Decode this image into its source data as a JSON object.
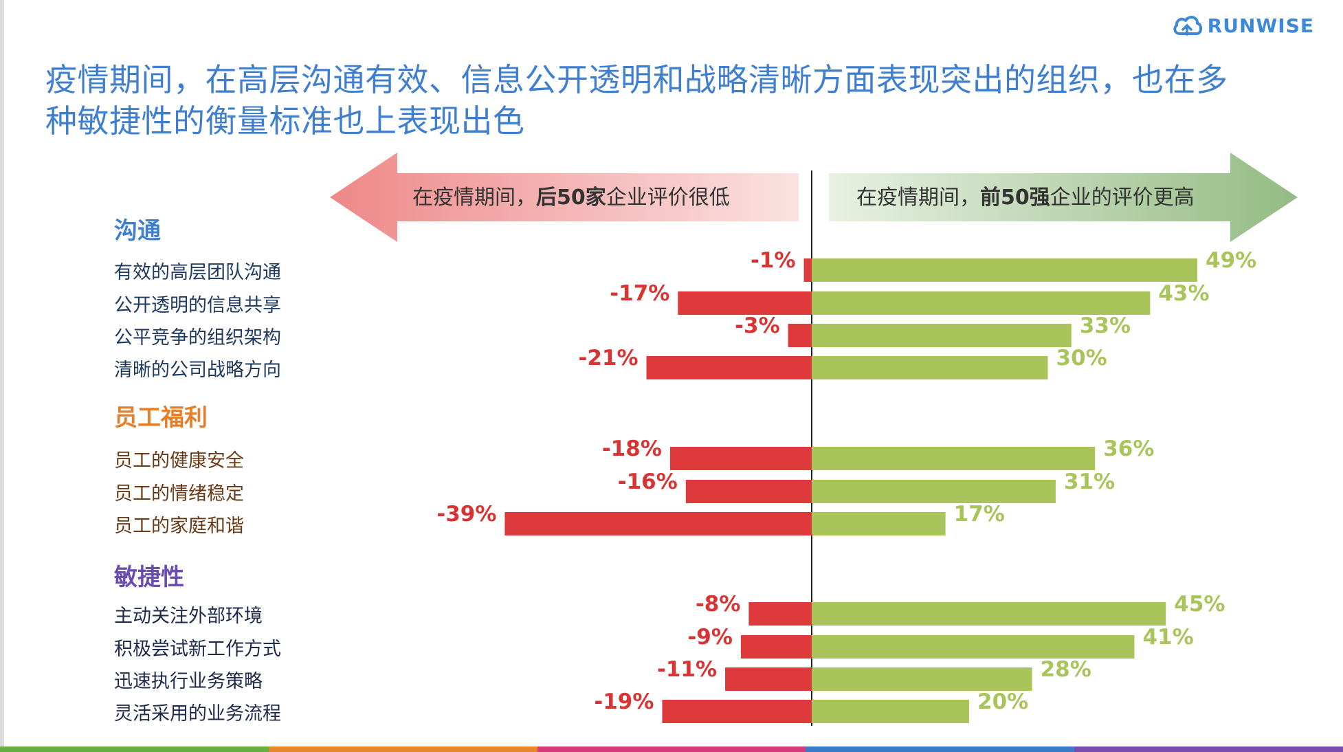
{
  "title": {
    "line1": "疫情期间，在高层沟通有效、信息公开透明和战略清晰方面表现突出的组织，也在多",
    "line2": "种敏捷性的衡量标准也上表现出色"
  },
  "logo": {
    "text": "RUNWISE",
    "icon": "cloud-logo-icon"
  },
  "banners": {
    "left": {
      "prefix": "在疫情期间，",
      "bold": "后50家",
      "suffix": "企业评价很低"
    },
    "right": {
      "prefix": "在疫情期间，",
      "bold": "前50强",
      "suffix": "企业的评价更高"
    }
  },
  "colors": {
    "title": "#3f7fce",
    "negative_bar": "#de3a3c",
    "positive_bar": "#a8c45a",
    "negative_label": "#d83434",
    "positive_label": "#a9c45a",
    "left_arrow": "#ee8a8a",
    "right_arrow": "#9cc08c",
    "category_comm": "#3f7fce",
    "category_welfare": "#e4802b",
    "category_agility": "#6b4cb0",
    "label_comm": "#1f3a60",
    "label_welfare": "#6b3a16",
    "label_agility": "#1f2a4a",
    "stripe": [
      "#64b045",
      "#e4872f",
      "#d63a7a",
      "#3b7cc9",
      "#7a4cb0"
    ]
  },
  "chart_data": {
    "type": "bar",
    "orientation": "horizontal-diverging",
    "groups": [
      {
        "name": "沟通",
        "color_key": "category_comm",
        "label_color_key": "label_comm",
        "items": [
          {
            "label": "有效的高层团队沟通",
            "negative": -1,
            "positive": 49,
            "neg_label": "-1%",
            "pos_label": "49%"
          },
          {
            "label": "公开透明的信息共享",
            "negative": -17,
            "positive": 43,
            "neg_label": "-17%",
            "pos_label": "43%"
          },
          {
            "label": "公平竞争的组织架构",
            "negative": -3,
            "positive": 33,
            "neg_label": "-3%",
            "pos_label": "33%"
          },
          {
            "label": "清晰的公司战略方向",
            "negative": -21,
            "positive": 30,
            "neg_label": "-21%",
            "pos_label": "30%"
          }
        ]
      },
      {
        "name": "员工福利",
        "color_key": "category_welfare",
        "label_color_key": "label_welfare",
        "items": [
          {
            "label": "员工的健康安全",
            "negative": -18,
            "positive": 36,
            "neg_label": "-18%",
            "pos_label": "36%"
          },
          {
            "label": "员工的情绪稳定",
            "negative": -16,
            "positive": 31,
            "neg_label": "-16%",
            "pos_label": "31%"
          },
          {
            "label": "员工的家庭和谐",
            "negative": -39,
            "positive": 17,
            "neg_label": "-39%",
            "pos_label": "17%"
          }
        ]
      },
      {
        "name": "敏捷性",
        "color_key": "category_agility",
        "label_color_key": "label_agility",
        "items": [
          {
            "label": "主动关注外部环境",
            "negative": -8,
            "positive": 45,
            "neg_label": "-8%",
            "pos_label": "45%"
          },
          {
            "label": "积极尝试新工作方式",
            "negative": -9,
            "positive": 41,
            "neg_label": "-9%",
            "pos_label": "41%"
          },
          {
            "label": "迅速执行业务策略",
            "negative": -11,
            "positive": 28,
            "neg_label": "-11%",
            "pos_label": "28%"
          },
          {
            "label": "灵活采用的业务流程",
            "negative": -19,
            "positive": 20,
            "neg_label": "-19%",
            "pos_label": "20%"
          }
        ]
      }
    ]
  }
}
